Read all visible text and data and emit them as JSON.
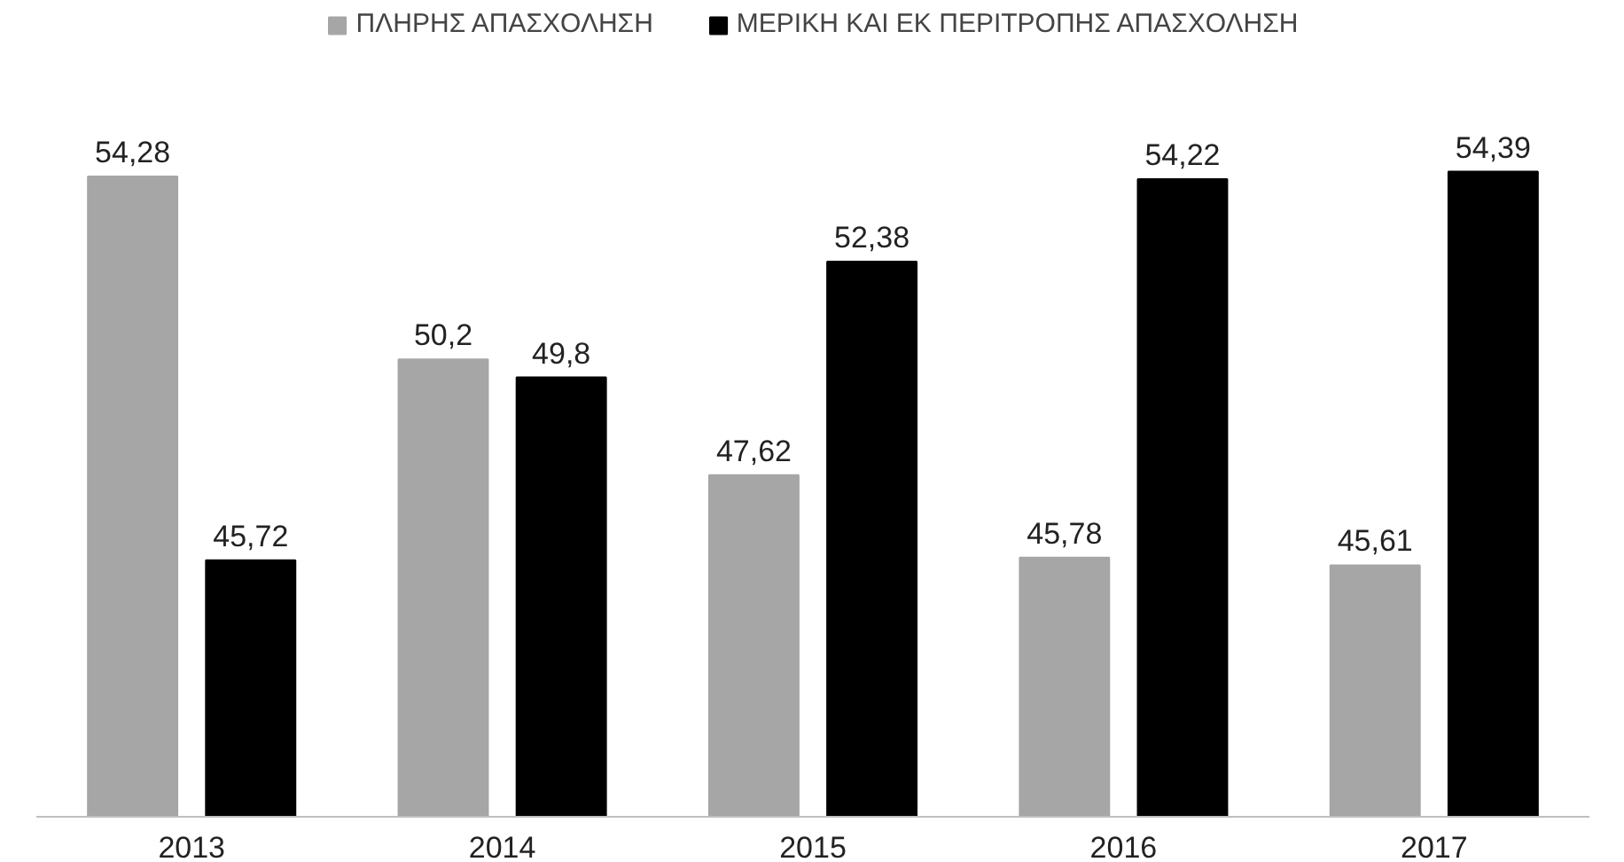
{
  "chart_data": {
    "type": "bar",
    "categories": [
      "2013",
      "2014",
      "2015",
      "2016",
      "2017"
    ],
    "series": [
      {
        "name": "ΠΛΗΡΗΣ ΑΠΑΣΧΟΛΗΣΗ",
        "color": "#a6a6a6",
        "values": [
          54.28,
          50.2,
          47.62,
          45.78,
          45.61
        ],
        "value_labels": [
          "54,28",
          "50,2",
          "47,62",
          "45,78",
          "45,61"
        ]
      },
      {
        "name": "ΜΕΡΙΚΗ ΚΑΙ ΕΚ ΠΕΡΙΤΡΟΠΗΣ ΑΠΑΣΧΟΛΗΣΗ",
        "color": "#000000",
        "values": [
          45.72,
          49.8,
          52.38,
          54.22,
          54.39
        ],
        "value_labels": [
          "45,72",
          "49,8",
          "52,38",
          "54,22",
          "54,39"
        ]
      }
    ],
    "ylim": [
      40,
      58
    ],
    "tick_labels": "x",
    "legend": "top",
    "grid": false
  }
}
